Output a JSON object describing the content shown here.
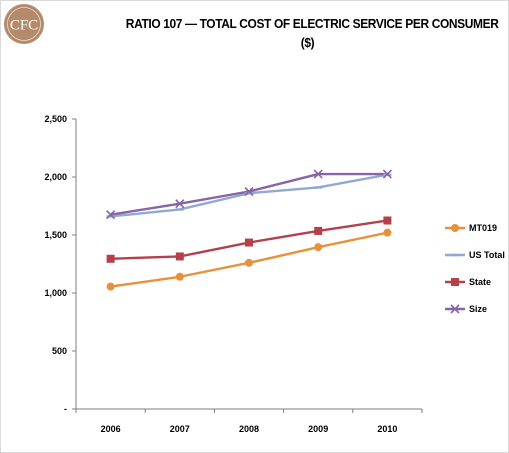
{
  "page": {
    "logo_text": "CFC",
    "title_line1": "RATIO 107 — TOTAL COST OF ELECTRIC SERVICE PER CONSUMER",
    "title_line2": "($)"
  },
  "chart_data": {
    "type": "line",
    "title": "RATIO 107 — TOTAL COST OF ELECTRIC SERVICE PER CONSUMER ($)",
    "categories": [
      "2006",
      "2007",
      "2008",
      "2009",
      "2010"
    ],
    "ylim": [
      0,
      2500
    ],
    "yticks": [
      0,
      500,
      1000,
      1500,
      2000,
      2500
    ],
    "ytick_labels": [
      "-",
      "500",
      "1,000",
      "1,500",
      "2,000",
      "2,500"
    ],
    "grid": false,
    "legend_position": "right",
    "series": [
      {
        "name": "MT019",
        "values": [
          1055,
          1140,
          1260,
          1395,
          1520
        ],
        "color": "#e8913a",
        "marker": "circle"
      },
      {
        "name": "US Total",
        "values": [
          1660,
          1720,
          1860,
          1910,
          2020
        ],
        "color": "#8fa8d4",
        "marker": "dash"
      },
      {
        "name": "State",
        "values": [
          1295,
          1315,
          1435,
          1535,
          1625
        ],
        "color": "#b3404a",
        "marker": "square"
      },
      {
        "name": "Size",
        "values": [
          1675,
          1770,
          1875,
          2025,
          2025
        ],
        "color": "#8763a8",
        "marker": "x"
      }
    ]
  }
}
